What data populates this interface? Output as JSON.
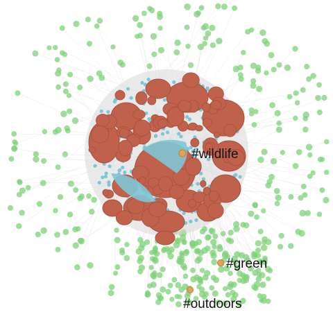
{
  "labels": {
    "wildlife": "#wildlife",
    "green": "#green",
    "outdoors": "#outdoors"
  },
  "colors": {
    "community_blob": "#c0614c",
    "community_blob_edge": "#a84f3d",
    "core_nodes": "#7ec6d6",
    "peripheral_nodes": "#7fd27a",
    "highlight_node": "#e3a25a",
    "edges": "#d9d9d9"
  }
}
